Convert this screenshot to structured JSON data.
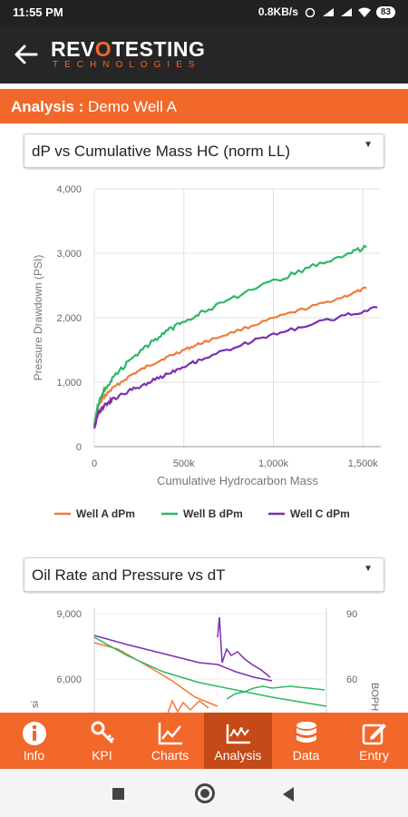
{
  "status": {
    "time": "11:55 PM",
    "net": "0.8KB/s",
    "battery": "83"
  },
  "header": {
    "brand": "REV",
    "brand_o": "O",
    "brand_rest": "TESTING",
    "sub": "TECHNOLOGIES"
  },
  "analysis": {
    "label": "Analysis :",
    "well": "Demo Well A"
  },
  "dropdown1": "dP vs Cumulative Mass HC (norm LL)",
  "dropdown2": "Oil Rate and Pressure vs dT",
  "colors": {
    "accent": "#f2672a",
    "accent_dark": "#c44a17",
    "header": "#262626",
    "wellA": "#f07b3a",
    "wellB": "#2db866",
    "wellC": "#7b2fb0"
  },
  "chart_data": [
    {
      "type": "line",
      "xlabel": "Cumulative Hydrocarbon Mass",
      "ylabel": "Pressure Drawdown (PSI)",
      "xlim": [
        0,
        1600000
      ],
      "ylim": [
        0,
        4000
      ],
      "x_ticks": [
        "0",
        "500k",
        "1,000k",
        "1,500k"
      ],
      "y_ticks": [
        "0",
        "1,000",
        "2,000",
        "3,000",
        "4,000"
      ],
      "grid": true,
      "legend": "bottom",
      "x": [
        0,
        20000,
        50000,
        100000,
        200000,
        300000,
        400000,
        500000,
        600000,
        800000,
        1000000,
        1200000,
        1400000,
        1520000
      ],
      "series": [
        {
          "name": "Well A dPm",
          "values": [
            350,
            620,
            760,
            900,
            1100,
            1250,
            1380,
            1500,
            1610,
            1800,
            1990,
            2160,
            2330,
            2460
          ]
        },
        {
          "name": "Well B dPm",
          "values": [
            350,
            650,
            850,
            1050,
            1350,
            1580,
            1780,
            1950,
            2080,
            2330,
            2560,
            2780,
            2980,
            3090
          ]
        }
      ],
      "series_c": {
        "name": "Well C dPm",
        "x": [
          0,
          20000,
          50000,
          100000,
          200000,
          300000,
          400000,
          500000,
          600000,
          800000,
          1000000,
          1200000,
          1400000,
          1580000
        ],
        "values": [
          300,
          500,
          620,
          730,
          870,
          990,
          1120,
          1250,
          1360,
          1560,
          1740,
          1890,
          2030,
          2160
        ]
      }
    },
    {
      "type": "line",
      "y_ticks_left": [
        "6,000",
        "9,000"
      ],
      "y_ticks_right": [
        "60",
        "90"
      ],
      "ylabel_right": "BOPH",
      "ylabel_left": "si"
    }
  ],
  "tabs": [
    {
      "label": "Info",
      "icon": "info-icon"
    },
    {
      "label": "KPI",
      "icon": "key-icon"
    },
    {
      "label": "Charts",
      "icon": "line-chart-icon"
    },
    {
      "label": "Analysis",
      "icon": "analysis-icon"
    },
    {
      "label": "Data",
      "icon": "database-icon"
    },
    {
      "label": "Entry",
      "icon": "edit-icon"
    }
  ]
}
